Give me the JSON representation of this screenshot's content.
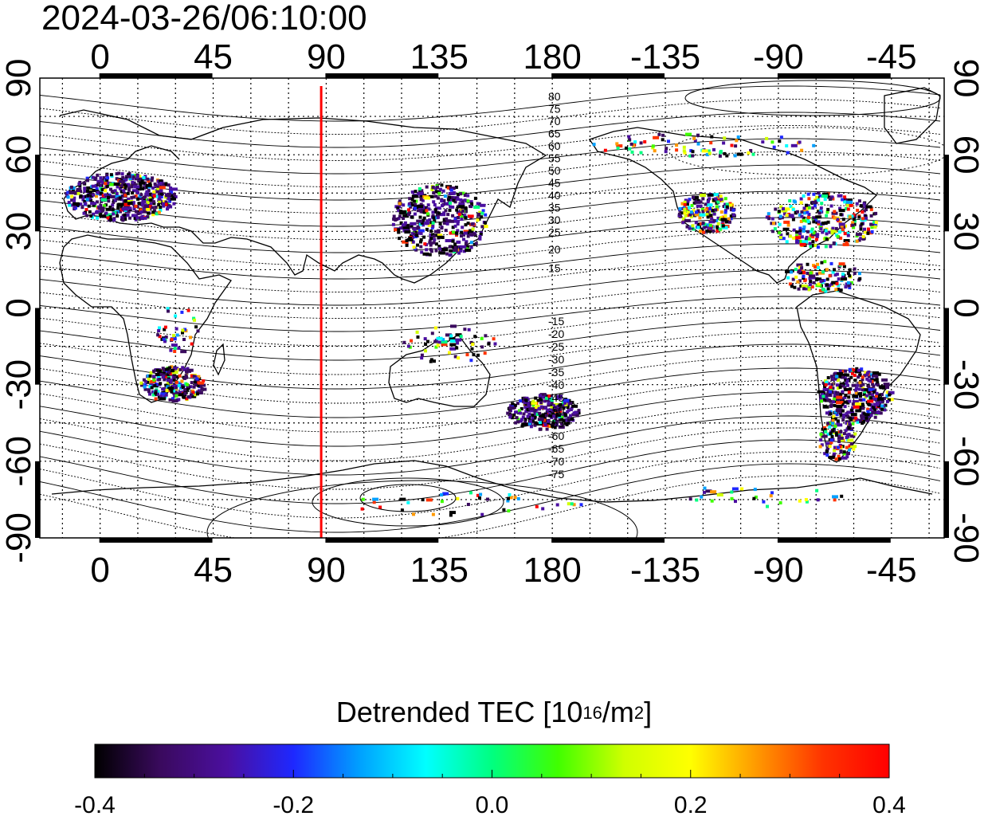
{
  "title": "2024-03-26/06:10:00",
  "map": {
    "top_lon_labels": [
      "0",
      "45",
      "90",
      "135",
      "180",
      "-135",
      "-90",
      "-45"
    ],
    "bottom_lon_labels": [
      "0",
      "45",
      "90",
      "135",
      "180",
      "-135",
      "-90",
      "-45"
    ],
    "left_lat_labels": [
      "90",
      "60",
      "30",
      "0",
      "-30",
      "-60",
      "-90"
    ],
    "right_lat_labels": [
      "90",
      "60",
      "30",
      "0",
      "-30",
      "-60",
      "-90"
    ],
    "lon_values": [
      0,
      45,
      90,
      135,
      180,
      225,
      270,
      315
    ],
    "lat_values": [
      90,
      60,
      30,
      0,
      -30,
      -60,
      -90
    ],
    "lon_range": [
      -24,
      336
    ],
    "lat_range": [
      -90,
      90
    ],
    "meridian_lon": 88,
    "north_contour_labels": [
      "80",
      "75",
      "70",
      "65",
      "60",
      "55",
      "50",
      "45",
      "40",
      "35",
      "30",
      "25",
      "20",
      "15"
    ],
    "south_contour_labels": [
      "-15",
      "-20",
      "-25",
      "-30",
      "-35",
      "-40",
      "-45",
      "-50",
      "-55",
      "-60",
      "-65",
      "-70",
      "-75"
    ],
    "colors": {
      "meridian_line": "#ff0000",
      "frame": "#000000"
    }
  },
  "colorbar": {
    "label_main": "Detrended TEC  [10",
    "label_exp": "16",
    "label_unit": "/m",
    "label_exp2": "2",
    "label_end": "]",
    "ticks": [
      "-0.4",
      "-0.2",
      "0.0",
      "0.2",
      "0.4"
    ],
    "range": [
      -0.4,
      0.4
    ],
    "colors": [
      "#000000",
      "#3a0a5e",
      "#4b0fa0",
      "#1e28ff",
      "#00a0ff",
      "#00ffff",
      "#00ff80",
      "#40ff00",
      "#d0ff00",
      "#ffff00",
      "#ff9900",
      "#ff3300",
      "#ff0000"
    ]
  }
}
